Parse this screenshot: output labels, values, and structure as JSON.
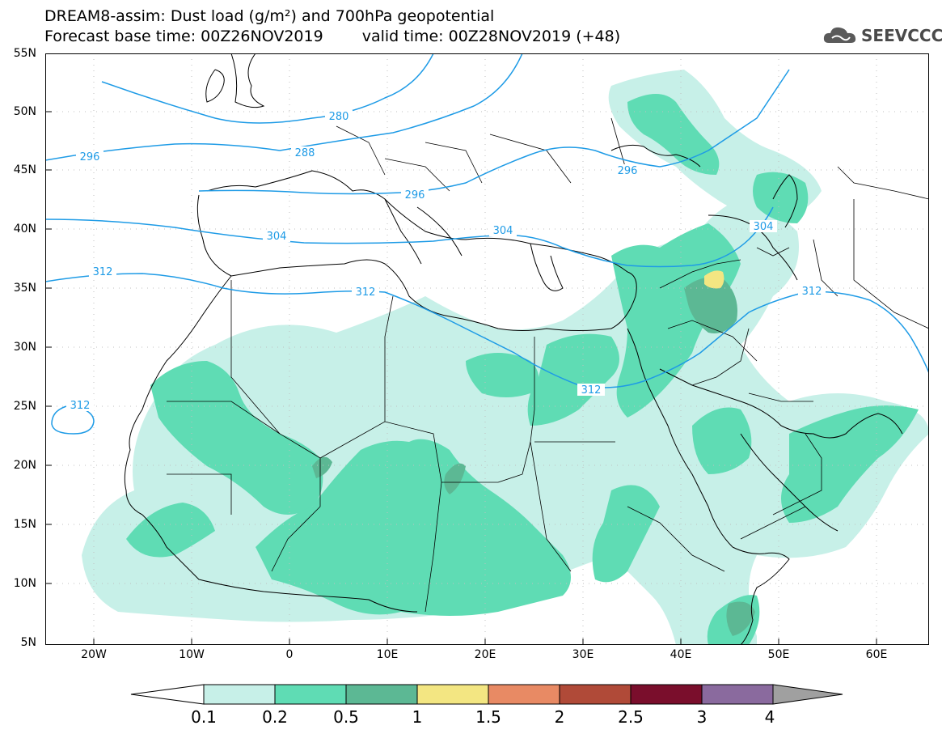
{
  "title": {
    "line1": "DREAM8-assim: Dust load (g/m²) and 700hPa geopotential",
    "base": "Forecast base time: 00Z26NOV2019",
    "valid": "valid time: 00Z28NOV2019 (+48)"
  },
  "logo": {
    "icon": "cloud-icon",
    "text": "SEEVCCC"
  },
  "axes": {
    "lat_labels": [
      "55N",
      "50N",
      "45N",
      "40N",
      "35N",
      "30N",
      "25N",
      "20N",
      "15N",
      "10N",
      "5N"
    ],
    "lon_labels": [
      "20W",
      "10W",
      "0",
      "10E",
      "20E",
      "30E",
      "40E",
      "50E",
      "60E"
    ]
  },
  "contour_labels": {
    "c280": "280",
    "c288": "288",
    "c296a": "296",
    "c296b": "296",
    "c296c": "296",
    "c304a": "304",
    "c304b": "304",
    "c304c": "304",
    "c312a": "312",
    "c312b": "312",
    "c312c": "312",
    "c312d": "312",
    "c312e": "312"
  },
  "colorbar": {
    "labels": [
      "0.1",
      "0.2",
      "0.5",
      "1",
      "1.5",
      "2",
      "2.5",
      "3",
      "4"
    ],
    "colors": [
      "#c7f0e8",
      "#5fdcb4",
      "#5cb894",
      "#f3e682",
      "#e88a64",
      "#b04a38",
      "#7a0e2c",
      "#8a6a9e"
    ],
    "end_color_low": "#ffffff",
    "end_color_high": "#a0a0a0"
  },
  "colors": {
    "contour_line": "#1e9be6",
    "border_line": "#000000",
    "grid_line": "#bfbfbf"
  }
}
